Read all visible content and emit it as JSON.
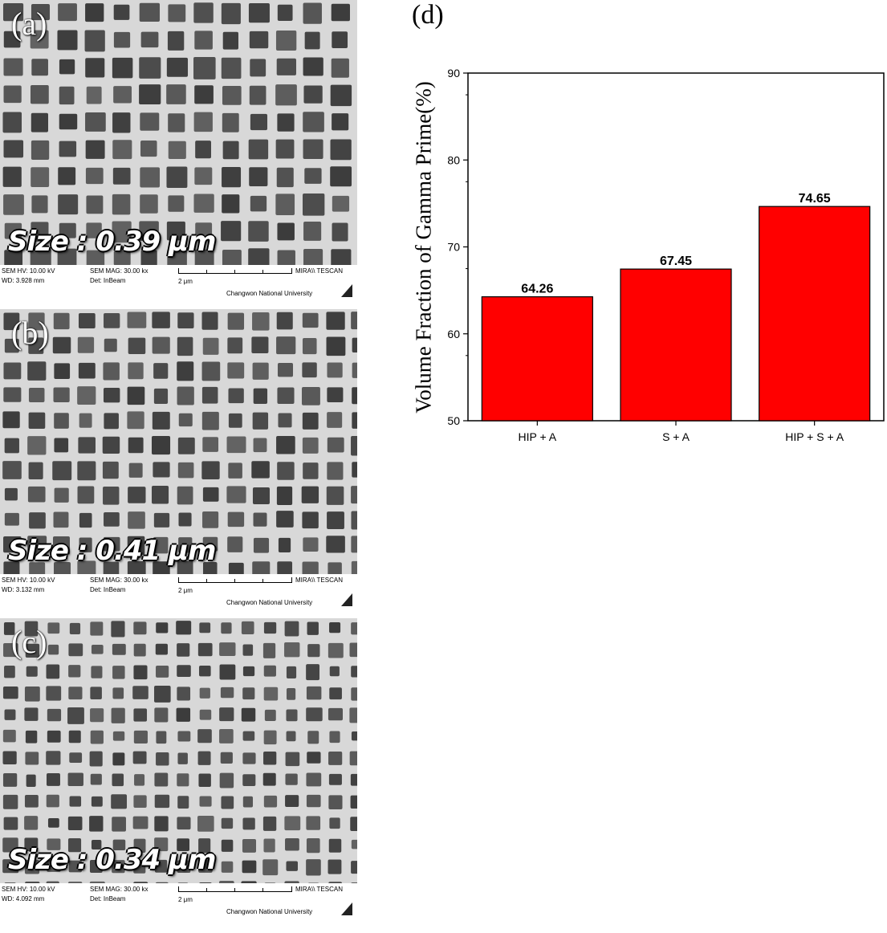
{
  "panels": [
    {
      "label": "(a)",
      "size_text": "Size : 0.39 μm",
      "footer": {
        "hv": "SEM HV: 10.00 kV",
        "wd": "WD: 3.928 mm",
        "mag": "SEM MAG: 30.00 kx",
        "det": "Det: InBeam",
        "scale": "2 μm",
        "brand": "MIRA\\\\ TESCAN",
        "institution": "Changwon National  University"
      }
    },
    {
      "label": "(b)",
      "size_text": "Size : 0.41 μm",
      "footer": {
        "hv": "SEM HV: 10.00 kV",
        "wd": "WD: 3.132 mm",
        "mag": "SEM MAG: 30.00 kx",
        "det": "Det: InBeam",
        "scale": "2 μm",
        "brand": "MIRA\\\\ TESCAN",
        "institution": "Changwon National  University"
      }
    },
    {
      "label": "(c)",
      "size_text": "Size : 0.34 μm",
      "footer": {
        "hv": "SEM HV: 10.00 kV",
        "wd": "WD: 4.092 mm",
        "mag": "SEM MAG: 30.00 kx",
        "det": "Det: InBeam",
        "scale": "2 μm",
        "brand": "MIRA\\\\ TESCAN",
        "institution": "Changwon National  University"
      }
    }
  ],
  "chart_panel_label": "(d)",
  "chart_data": {
    "type": "bar",
    "categories": [
      "HIP + A",
      "S + A",
      "HIP + S + A"
    ],
    "values": [
      64.26,
      67.45,
      74.65
    ],
    "value_labels": [
      "64.26",
      "67.45",
      "74.65"
    ],
    "ylabel": "Volume Fraction of Gamma Prime(%)",
    "xlabel": "",
    "ylim": [
      50,
      90
    ],
    "yticks": [
      50,
      60,
      70,
      80,
      90
    ],
    "grid": false,
    "bar_color": "#ff0000",
    "bar_edge_color": "#000000"
  }
}
